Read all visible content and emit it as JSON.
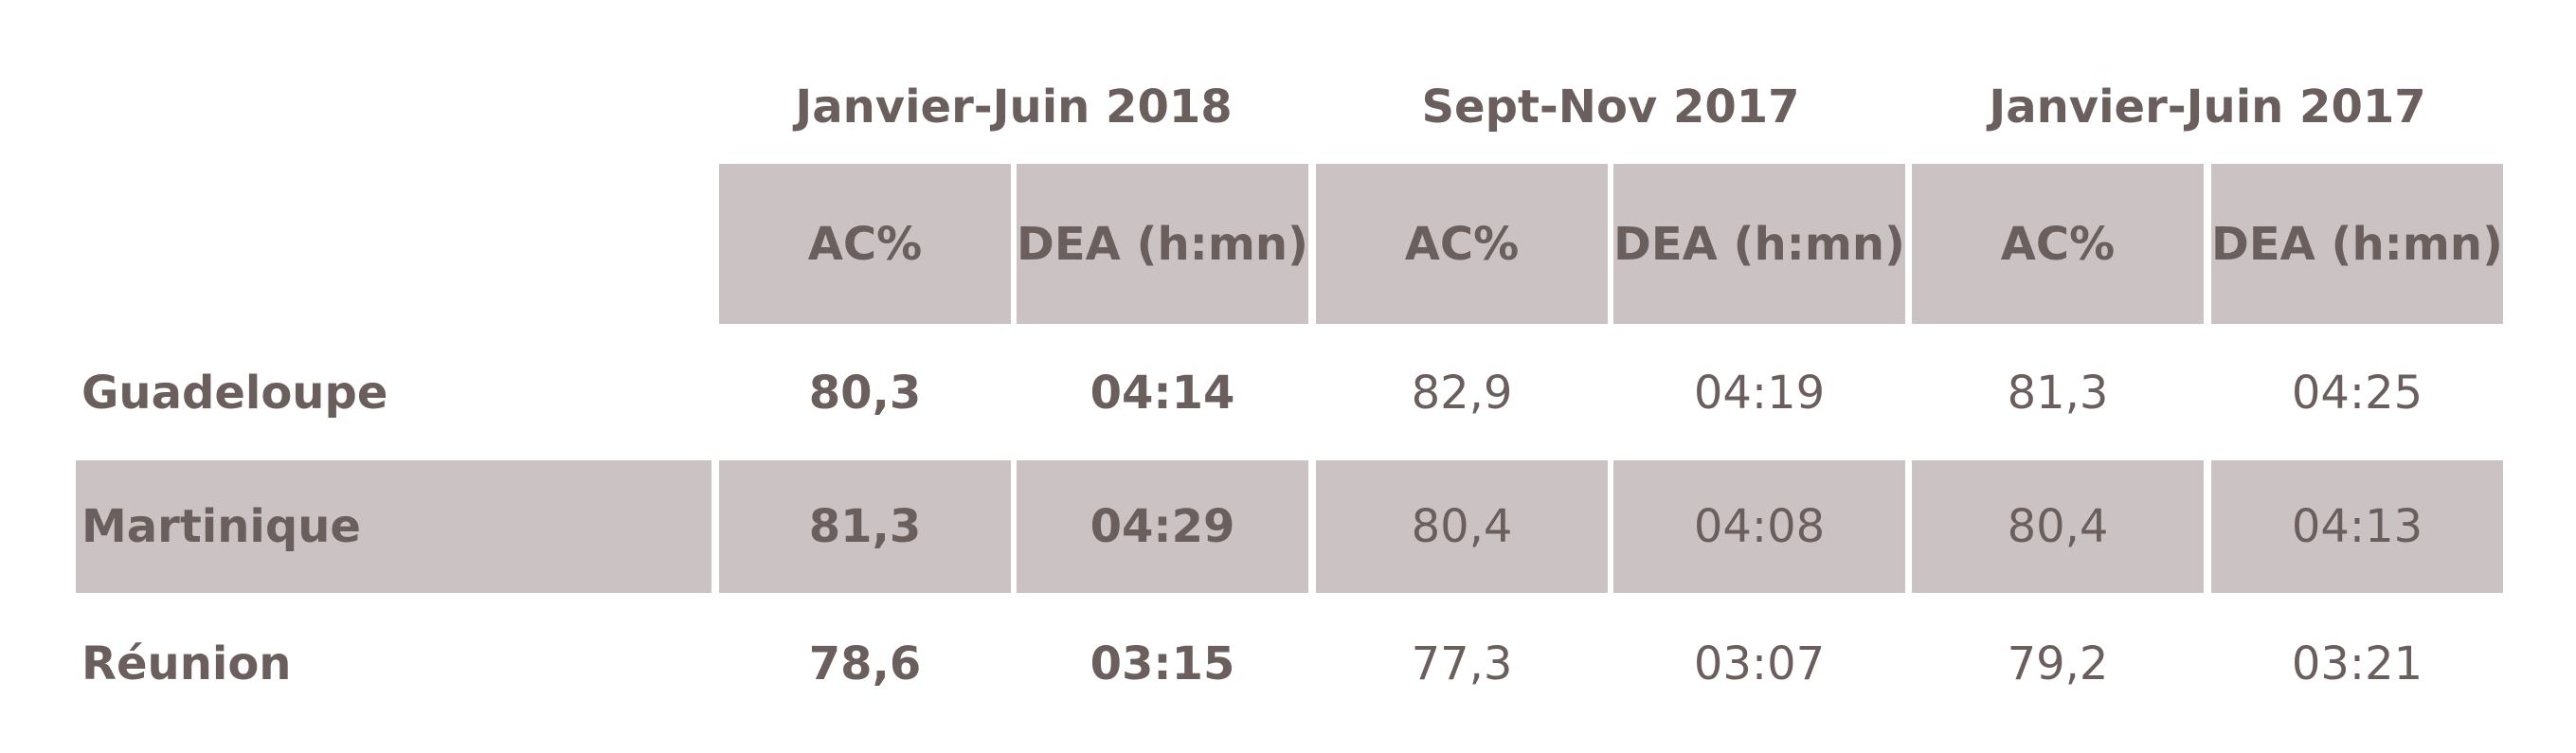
{
  "table": {
    "groups": [
      "Janvier-Juin 2018",
      "Sept-Nov 2017",
      "Janvier-Juin 2017"
    ],
    "columns": [
      "AC%",
      "DEA (h:mn)",
      "AC%",
      "DEA (h:mn)",
      "AC%",
      "DEA (h:mn)"
    ],
    "rows": [
      {
        "label": "Guadeloupe",
        "cells": [
          "80,3",
          "04:14",
          "82,9",
          "04:19",
          "81,3",
          "04:25"
        ]
      },
      {
        "label": "Martinique",
        "cells": [
          "81,3",
          "04:29",
          "80,4",
          "04:08",
          "80,4",
          "04:13"
        ]
      },
      {
        "label": "Réunion",
        "cells": [
          "78,6",
          "03:15",
          "77,3",
          "03:07",
          "79,2",
          "03:21"
        ]
      }
    ]
  }
}
